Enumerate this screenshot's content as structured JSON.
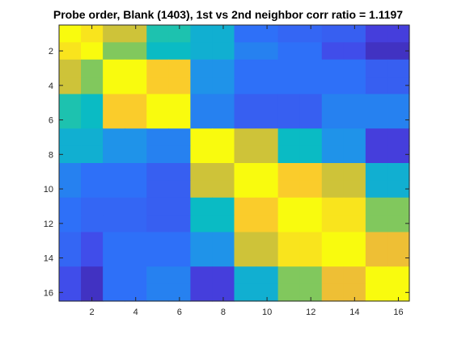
{
  "chart_data": {
    "type": "heatmap",
    "title": "Probe order, Blank (1403), 1st vs 2nd neighbor corr ratio = 1.1197",
    "xlabel": "",
    "ylabel": "",
    "xlim": [
      0.5,
      16.5
    ],
    "ylim": [
      16.5,
      0.5
    ],
    "x_ticks": [
      2,
      4,
      6,
      8,
      10,
      12,
      14,
      16
    ],
    "y_ticks": [
      2,
      4,
      6,
      8,
      10,
      12,
      14,
      16
    ],
    "x_tick_labels": [
      "2",
      "4",
      "6",
      "8",
      "10",
      "12",
      "14",
      "16"
    ],
    "y_tick_labels": [
      "2",
      "4",
      "6",
      "8",
      "10",
      "12",
      "14",
      "16"
    ],
    "colormap": "parula",
    "color_range": [
      0,
      1
    ],
    "grid": false,
    "rows": 16,
    "cols": 16,
    "values": [
      [
        1.0,
        0.95,
        0.8,
        0.8,
        0.55,
        0.55,
        0.45,
        0.45,
        0.25,
        0.25,
        0.22,
        0.22,
        0.2,
        0.2,
        0.1,
        0.1
      ],
      [
        0.95,
        1.0,
        0.7,
        0.7,
        0.5,
        0.5,
        0.45,
        0.45,
        0.3,
        0.3,
        0.25,
        0.25,
        0.15,
        0.15,
        0.05,
        0.05
      ],
      [
        0.8,
        0.7,
        1.0,
        1.0,
        0.9,
        0.9,
        0.35,
        0.35,
        0.25,
        0.25,
        0.25,
        0.25,
        0.25,
        0.25,
        0.2,
        0.2
      ],
      [
        0.8,
        0.7,
        1.0,
        1.0,
        0.9,
        0.9,
        0.35,
        0.35,
        0.25,
        0.25,
        0.25,
        0.25,
        0.25,
        0.25,
        0.2,
        0.2
      ],
      [
        0.55,
        0.5,
        0.9,
        0.9,
        1.0,
        1.0,
        0.3,
        0.3,
        0.2,
        0.2,
        0.2,
        0.2,
        0.3,
        0.3,
        0.3,
        0.3
      ],
      [
        0.55,
        0.5,
        0.9,
        0.9,
        1.0,
        1.0,
        0.3,
        0.3,
        0.2,
        0.2,
        0.2,
        0.2,
        0.3,
        0.3,
        0.3,
        0.3
      ],
      [
        0.45,
        0.45,
        0.35,
        0.35,
        0.3,
        0.3,
        1.0,
        1.0,
        0.8,
        0.8,
        0.5,
        0.5,
        0.35,
        0.35,
        0.1,
        0.1
      ],
      [
        0.45,
        0.45,
        0.35,
        0.35,
        0.3,
        0.3,
        1.0,
        1.0,
        0.8,
        0.8,
        0.5,
        0.5,
        0.35,
        0.35,
        0.1,
        0.1
      ],
      [
        0.3,
        0.25,
        0.25,
        0.25,
        0.2,
        0.2,
        0.8,
        0.8,
        1.0,
        1.0,
        0.9,
        0.9,
        0.8,
        0.8,
        0.45,
        0.45
      ],
      [
        0.3,
        0.25,
        0.25,
        0.25,
        0.2,
        0.2,
        0.8,
        0.8,
        1.0,
        1.0,
        0.9,
        0.9,
        0.8,
        0.8,
        0.45,
        0.45
      ],
      [
        0.25,
        0.22,
        0.22,
        0.22,
        0.2,
        0.2,
        0.5,
        0.5,
        0.9,
        0.9,
        1.0,
        1.0,
        0.95,
        0.95,
        0.7,
        0.7
      ],
      [
        0.25,
        0.22,
        0.22,
        0.22,
        0.2,
        0.2,
        0.5,
        0.5,
        0.9,
        0.9,
        1.0,
        1.0,
        0.95,
        0.95,
        0.7,
        0.7
      ],
      [
        0.22,
        0.15,
        0.25,
        0.25,
        0.25,
        0.25,
        0.35,
        0.35,
        0.8,
        0.8,
        0.95,
        0.95,
        1.0,
        1.0,
        0.85,
        0.85
      ],
      [
        0.22,
        0.15,
        0.25,
        0.25,
        0.25,
        0.25,
        0.35,
        0.35,
        0.8,
        0.8,
        0.95,
        0.95,
        1.0,
        1.0,
        0.85,
        0.85
      ],
      [
        0.15,
        0.05,
        0.25,
        0.25,
        0.3,
        0.3,
        0.1,
        0.1,
        0.45,
        0.45,
        0.7,
        0.7,
        0.85,
        0.85,
        1.0,
        1.0
      ],
      [
        0.15,
        0.05,
        0.25,
        0.25,
        0.3,
        0.3,
        0.1,
        0.1,
        0.45,
        0.45,
        0.7,
        0.7,
        0.85,
        0.85,
        1.0,
        1.0
      ]
    ]
  }
}
